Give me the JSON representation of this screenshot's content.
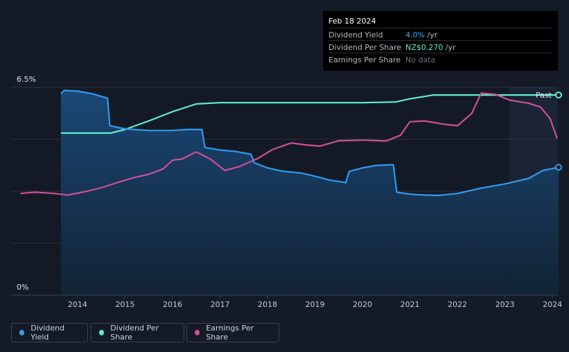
{
  "tooltip": {
    "date": "Feb 18 2024",
    "rows": [
      {
        "label": "Dividend Yield",
        "value": "4.0%",
        "unit": " /yr",
        "color": "#3ea6f2"
      },
      {
        "label": "Dividend Per Share",
        "value": "NZ$0.270",
        "unit": " /yr",
        "color": "#5ff0d0"
      },
      {
        "label": "Earnings Per Share",
        "value": "No data",
        "unit": "",
        "color": "#6b7079"
      }
    ]
  },
  "legend": [
    {
      "label": "Dividend Yield",
      "color": "#3b9be6"
    },
    {
      "label": "Dividend Per Share",
      "color": "#5ff0d0"
    },
    {
      "label": "Earnings Per Share",
      "color": "#d0509a"
    }
  ],
  "chart_data": {
    "type": "line",
    "title": "",
    "y_top_label": "6.5%",
    "y_bottom_label": "0%",
    "past_label": "Past",
    "x_tick_labels": [
      "2014",
      "2015",
      "2016",
      "2017",
      "2018",
      "2019",
      "2020",
      "2021",
      "2022",
      "2023",
      "2024"
    ],
    "x_tick_values": [
      2014,
      2015,
      2016,
      2017,
      2018,
      2019,
      2020,
      2021,
      2022,
      2023,
      2024
    ],
    "xlim": [
      2012.6,
      2024.13
    ],
    "ylim": [
      0,
      6.5
    ],
    "series": [
      {
        "name": "Dividend Yield",
        "unit": "%",
        "color": "#2f9bf0",
        "points": [
          [
            2013.65,
            6.3
          ],
          [
            2013.72,
            6.4
          ],
          [
            2014.0,
            6.38
          ],
          [
            2014.3,
            6.3
          ],
          [
            2014.63,
            6.16
          ],
          [
            2014.68,
            5.3
          ],
          [
            2015.0,
            5.2
          ],
          [
            2015.5,
            5.15
          ],
          [
            2016.0,
            5.15
          ],
          [
            2016.3,
            5.18
          ],
          [
            2016.62,
            5.18
          ],
          [
            2016.68,
            4.62
          ],
          [
            2017.0,
            4.54
          ],
          [
            2017.3,
            4.5
          ],
          [
            2017.65,
            4.41
          ],
          [
            2017.72,
            4.14
          ],
          [
            2018.0,
            3.98
          ],
          [
            2018.3,
            3.88
          ],
          [
            2018.7,
            3.82
          ],
          [
            2019.0,
            3.72
          ],
          [
            2019.3,
            3.6
          ],
          [
            2019.65,
            3.52
          ],
          [
            2019.72,
            3.87
          ],
          [
            2020.0,
            3.98
          ],
          [
            2020.3,
            4.06
          ],
          [
            2020.65,
            4.08
          ],
          [
            2020.72,
            3.22
          ],
          [
            2021.0,
            3.16
          ],
          [
            2021.3,
            3.13
          ],
          [
            2021.6,
            3.12
          ],
          [
            2022.0,
            3.18
          ],
          [
            2022.5,
            3.35
          ],
          [
            2023.0,
            3.48
          ],
          [
            2023.5,
            3.65
          ],
          [
            2023.8,
            3.9
          ],
          [
            2024.13,
            4.0
          ]
        ]
      },
      {
        "name": "Dividend Per Share",
        "unit": "NZ$",
        "color": "#5ff0d0",
        "points": [
          [
            2013.65,
            5.07
          ],
          [
            2014.0,
            5.07
          ],
          [
            2014.7,
            5.07
          ],
          [
            2015.0,
            5.18
          ],
          [
            2015.5,
            5.45
          ],
          [
            2016.0,
            5.74
          ],
          [
            2016.5,
            5.98
          ],
          [
            2017.0,
            6.02
          ],
          [
            2018.0,
            6.02
          ],
          [
            2019.0,
            6.02
          ],
          [
            2020.0,
            6.02
          ],
          [
            2020.7,
            6.04
          ],
          [
            2021.0,
            6.14
          ],
          [
            2021.5,
            6.26
          ],
          [
            2022.0,
            6.26
          ],
          [
            2023.0,
            6.26
          ],
          [
            2024.13,
            6.26
          ]
        ]
      },
      {
        "name": "Earnings Per Share",
        "unit": "NZ$",
        "color": "#cf4f97",
        "points": [
          [
            2012.8,
            3.18
          ],
          [
            2013.1,
            3.22
          ],
          [
            2013.5,
            3.18
          ],
          [
            2013.8,
            3.13
          ],
          [
            2014.2,
            3.25
          ],
          [
            2014.5,
            3.36
          ],
          [
            2014.9,
            3.55
          ],
          [
            2015.2,
            3.68
          ],
          [
            2015.5,
            3.78
          ],
          [
            2015.8,
            3.95
          ],
          [
            2016.0,
            4.22
          ],
          [
            2016.2,
            4.26
          ],
          [
            2016.5,
            4.48
          ],
          [
            2016.8,
            4.25
          ],
          [
            2017.1,
            3.9
          ],
          [
            2017.4,
            4.02
          ],
          [
            2017.8,
            4.28
          ],
          [
            2018.1,
            4.55
          ],
          [
            2018.5,
            4.76
          ],
          [
            2018.8,
            4.7
          ],
          [
            2019.1,
            4.66
          ],
          [
            2019.5,
            4.83
          ],
          [
            2020.0,
            4.85
          ],
          [
            2020.5,
            4.82
          ],
          [
            2020.8,
            5.0
          ],
          [
            2021.0,
            5.42
          ],
          [
            2021.3,
            5.45
          ],
          [
            2021.7,
            5.35
          ],
          [
            2022.0,
            5.3
          ],
          [
            2022.3,
            5.68
          ],
          [
            2022.5,
            6.32
          ],
          [
            2022.8,
            6.28
          ],
          [
            2023.1,
            6.1
          ],
          [
            2023.5,
            6.0
          ],
          [
            2023.75,
            5.88
          ],
          [
            2023.95,
            5.52
          ],
          [
            2024.1,
            4.9
          ]
        ]
      }
    ]
  }
}
